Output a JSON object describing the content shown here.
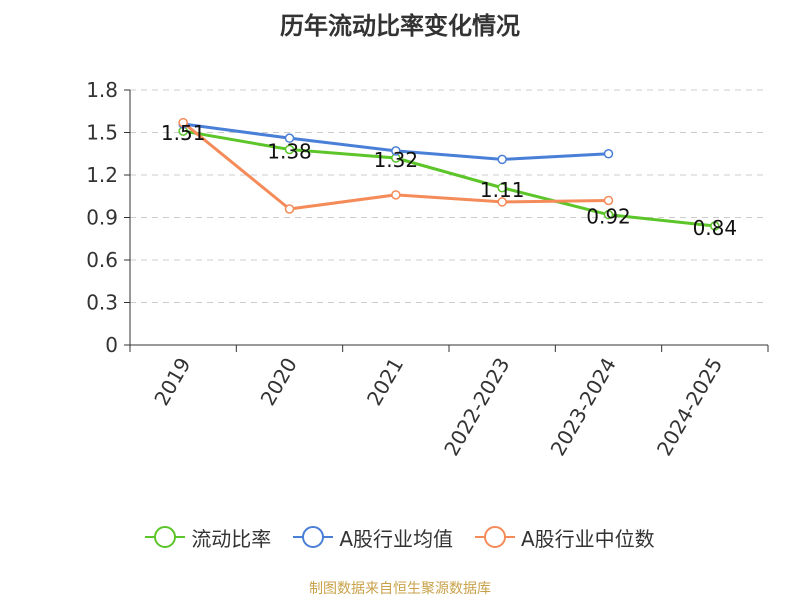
{
  "chart_data": {
    "type": "line",
    "title": "历年流动比率变化情况",
    "categories": [
      "2019",
      "2020",
      "2021",
      "2022-2023",
      "2023-2024",
      "2024-2025"
    ],
    "ylim": [
      0,
      1.8
    ],
    "yticks": [
      "0",
      "0.3",
      "0.6",
      "0.9",
      "1.2",
      "1.5",
      "1.8"
    ],
    "grid": true,
    "legend_position": "bottom",
    "series": [
      {
        "name": "流动比率",
        "color": "#5cc52a",
        "values": [
          1.51,
          1.38,
          1.32,
          1.11,
          0.92,
          0.84
        ],
        "labels": [
          "1.51",
          "1.38",
          "1.32",
          "1.11",
          "0.92",
          "0.84"
        ]
      },
      {
        "name": "A股行业均值",
        "color": "#4a7fd8",
        "values": [
          1.56,
          1.46,
          1.37,
          1.31,
          1.35,
          null
        ],
        "labels": []
      },
      {
        "name": "A股行业中位数",
        "color": "#f48b59",
        "values": [
          1.57,
          0.96,
          1.06,
          1.01,
          1.02,
          null
        ],
        "labels": []
      }
    ]
  },
  "footer": {
    "source": "制图数据来自恒生聚源数据库"
  }
}
